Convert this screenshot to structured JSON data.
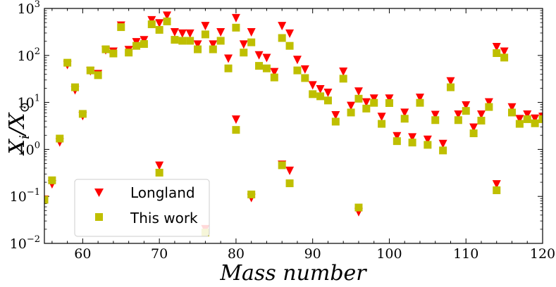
{
  "chart_data": {
    "type": "scatter",
    "xlabel": "Mass number",
    "ylabel": "X_i/X_⊙",
    "xlim": [
      55,
      120
    ],
    "ylim": [
      0.01,
      1000
    ],
    "yscale": "log",
    "x_ticks": [
      60,
      70,
      80,
      90,
      100,
      110,
      120
    ],
    "y_ticks": [
      {
        "value": 0.01,
        "base": "10",
        "exp": "−2"
      },
      {
        "value": 0.1,
        "base": "10",
        "exp": "−1"
      },
      {
        "value": 1,
        "base": "10",
        "exp": "0"
      },
      {
        "value": 10,
        "base": "10",
        "exp": "1"
      },
      {
        "value": 100,
        "base": "10",
        "exp": "2"
      },
      {
        "value": 1000,
        "base": "10",
        "exp": "3"
      }
    ],
    "legend_position": "lower-left",
    "series": [
      {
        "name": "Longland",
        "marker": "triangle-down",
        "color": "#ff0000",
        "points": [
          [
            55,
            0.085
          ],
          [
            56,
            0.18
          ],
          [
            57,
            1.4
          ],
          [
            58,
            62
          ],
          [
            59,
            18
          ],
          [
            60,
            5.1
          ],
          [
            61,
            46
          ],
          [
            62,
            40
          ],
          [
            63,
            128
          ],
          [
            64,
            120
          ],
          [
            65,
            430
          ],
          [
            66,
            130
          ],
          [
            67,
            190
          ],
          [
            68,
            210
          ],
          [
            69,
            560
          ],
          [
            70,
            480
          ],
          [
            70,
            0.45
          ],
          [
            71,
            700
          ],
          [
            72,
            310
          ],
          [
            73,
            290
          ],
          [
            74,
            290
          ],
          [
            75,
            170
          ],
          [
            76,
            420
          ],
          [
            76,
            0.02
          ],
          [
            77,
            170
          ],
          [
            78,
            310
          ],
          [
            79,
            85
          ],
          [
            80,
            620
          ],
          [
            80,
            4.3
          ],
          [
            81,
            170
          ],
          [
            82,
            310
          ],
          [
            82,
            0.092
          ],
          [
            83,
            100
          ],
          [
            84,
            88
          ],
          [
            85,
            44
          ],
          [
            86,
            420
          ],
          [
            86,
            0.47
          ],
          [
            87,
            290
          ],
          [
            87,
            0.35
          ],
          [
            88,
            80
          ],
          [
            89,
            50
          ],
          [
            90,
            23
          ],
          [
            91,
            19
          ],
          [
            92,
            16
          ],
          [
            93,
            5.3
          ],
          [
            94,
            45
          ],
          [
            95,
            8.4
          ],
          [
            96,
            17
          ],
          [
            96,
            0.046
          ],
          [
            97,
            10
          ],
          [
            98,
            12
          ],
          [
            99,
            4.9
          ],
          [
            100,
            12
          ],
          [
            101,
            1.9
          ],
          [
            102,
            6
          ],
          [
            103,
            1.8
          ],
          [
            104,
            12.5
          ],
          [
            105,
            1.6
          ],
          [
            106,
            5.4
          ],
          [
            107,
            1.3
          ],
          [
            108,
            28
          ],
          [
            109,
            5.5
          ],
          [
            110,
            8.6
          ],
          [
            111,
            2.9
          ],
          [
            112,
            5.5
          ],
          [
            113,
            10
          ],
          [
            114,
            150
          ],
          [
            114,
            0.18
          ],
          [
            115,
            120
          ],
          [
            116,
            7.8
          ],
          [
            117,
            4.4
          ],
          [
            118,
            5.5
          ],
          [
            119,
            4.5
          ],
          [
            120,
            4.9
          ]
        ]
      },
      {
        "name": "This work",
        "marker": "square",
        "color": "#bfbf00",
        "points": [
          [
            55,
            0.085
          ],
          [
            56,
            0.22
          ],
          [
            57,
            1.7
          ],
          [
            58,
            70
          ],
          [
            59,
            21
          ],
          [
            60,
            5.7
          ],
          [
            61,
            48
          ],
          [
            62,
            38
          ],
          [
            63,
            135
          ],
          [
            64,
            110
          ],
          [
            65,
            400
          ],
          [
            66,
            115
          ],
          [
            67,
            160
          ],
          [
            68,
            175
          ],
          [
            69,
            460
          ],
          [
            70,
            350
          ],
          [
            70,
            0.32
          ],
          [
            71,
            530
          ],
          [
            72,
            215
          ],
          [
            73,
            205
          ],
          [
            74,
            205
          ],
          [
            75,
            135
          ],
          [
            76,
            280
          ],
          [
            76,
            0.017
          ],
          [
            77,
            135
          ],
          [
            78,
            205
          ],
          [
            79,
            53
          ],
          [
            80,
            390
          ],
          [
            80,
            2.6
          ],
          [
            81,
            115
          ],
          [
            82,
            190
          ],
          [
            82,
            0.11
          ],
          [
            83,
            60
          ],
          [
            84,
            53
          ],
          [
            85,
            34
          ],
          [
            86,
            235
          ],
          [
            86,
            0.46
          ],
          [
            87,
            160
          ],
          [
            87,
            0.19
          ],
          [
            88,
            48
          ],
          [
            89,
            33
          ],
          [
            90,
            15
          ],
          [
            91,
            13.5
          ],
          [
            92,
            11
          ],
          [
            93,
            3.9
          ],
          [
            94,
            32
          ],
          [
            95,
            6.1
          ],
          [
            96,
            12
          ],
          [
            96,
            0.058
          ],
          [
            97,
            7.4
          ],
          [
            98,
            9.8
          ],
          [
            99,
            3.5
          ],
          [
            100,
            9.7
          ],
          [
            101,
            1.5
          ],
          [
            102,
            4.5
          ],
          [
            103,
            1.4
          ],
          [
            104,
            9.8
          ],
          [
            105,
            1.25
          ],
          [
            106,
            4.2
          ],
          [
            107,
            0.95
          ],
          [
            108,
            21
          ],
          [
            109,
            4.2
          ],
          [
            110,
            6.6
          ],
          [
            111,
            2.2
          ],
          [
            112,
            4.1
          ],
          [
            113,
            8
          ],
          [
            114,
            112
          ],
          [
            114,
            0.135
          ],
          [
            115,
            90
          ],
          [
            116,
            6.1
          ],
          [
            117,
            3.5
          ],
          [
            118,
            4.4
          ],
          [
            119,
            3.6
          ],
          [
            120,
            4.4
          ]
        ]
      }
    ]
  }
}
